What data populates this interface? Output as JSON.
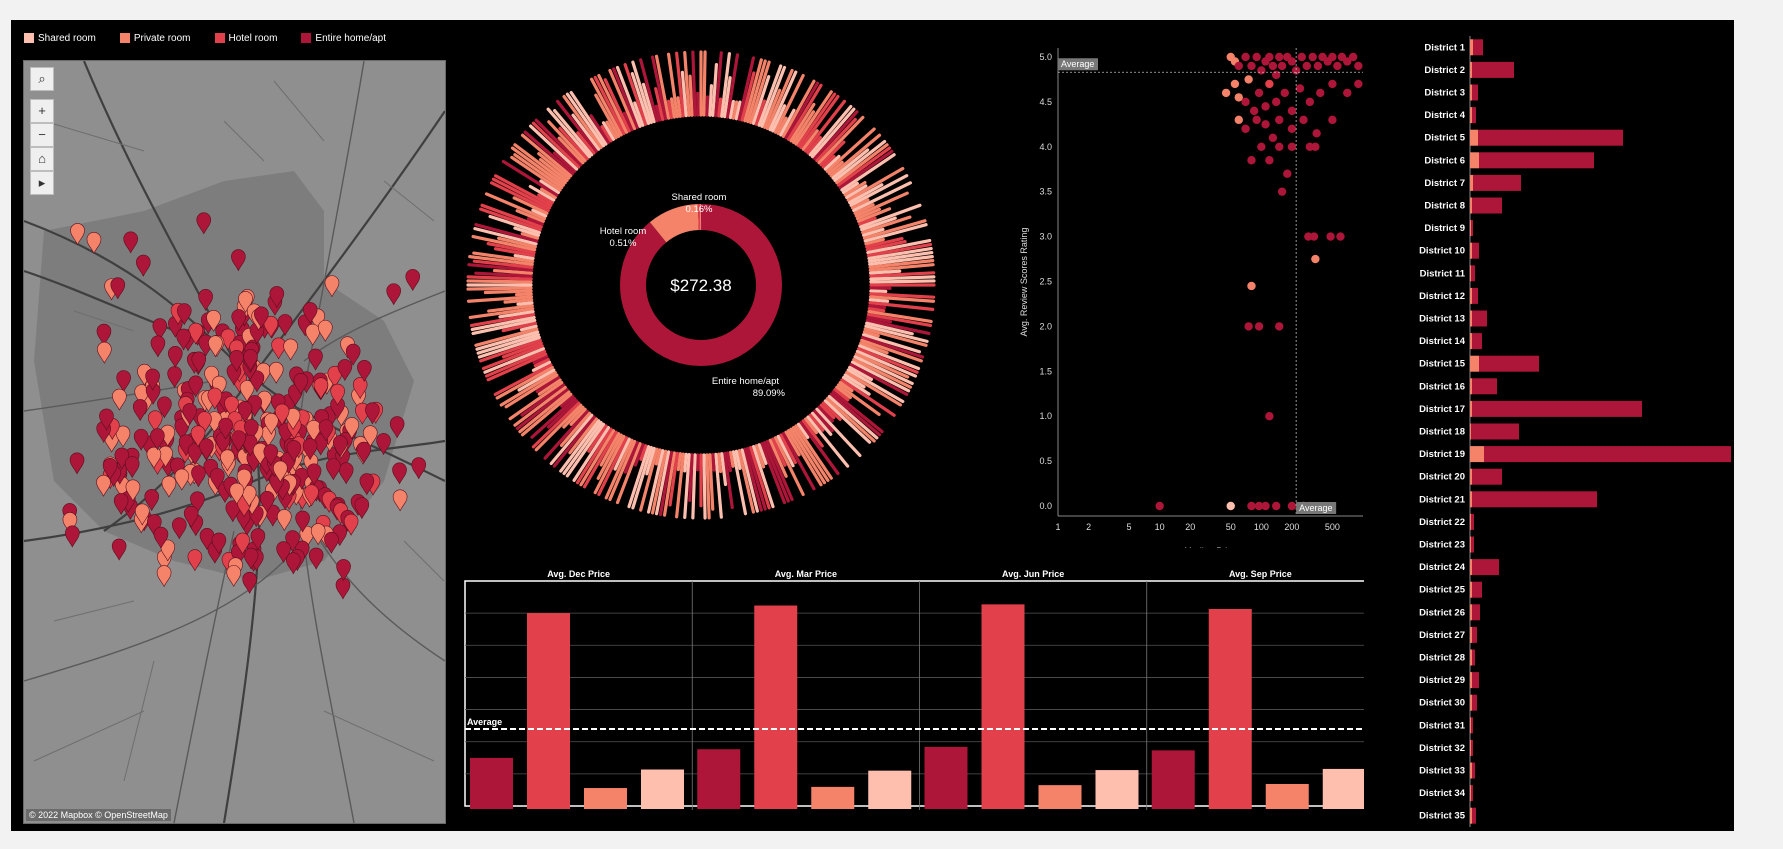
{
  "colors": {
    "shared": "#ffbfaf",
    "private": "#f5836a",
    "hotel": "#e2404a",
    "entire": "#ad1638"
  },
  "legend": [
    {
      "label": "Shared room",
      "color": "#ffbfaf"
    },
    {
      "label": "Private room",
      "color": "#f5836a"
    },
    {
      "label": "Hotel room",
      "color": "#e2404a"
    },
    {
      "label": "Entire home/apt",
      "color": "#ad1638"
    }
  ],
  "map": {
    "credit": "© 2022 Mapbox © OpenStreetMap",
    "controls": [
      "search-icon",
      "zoom-in-icon",
      "zoom-out-icon",
      "home-icon",
      "play-icon"
    ]
  },
  "chart_data": [
    {
      "type": "pie",
      "title": "",
      "center_label": "$272.38",
      "slices": [
        {
          "name": "Entire home/apt",
          "label_value": "89.09%",
          "value": 89.09,
          "color": "#ad1638"
        },
        {
          "name": "Private room",
          "label_value": "",
          "value": 10.24,
          "color": "#f5836a"
        },
        {
          "name": "Hotel room",
          "label_value": "0.51%",
          "value": 0.51,
          "color": "#e2404a"
        },
        {
          "name": "Shared room",
          "label_value": "0.16%",
          "value": 0.16,
          "color": "#ffbfaf"
        }
      ]
    },
    {
      "type": "scatter",
      "xlabel": "Median Price",
      "ylabel": "Avg. Review Scores Rating",
      "xscale": "log",
      "xlim": [
        1,
        1000
      ],
      "ylim": [
        0,
        5.1
      ],
      "xticks": [
        {
          "v": 1,
          "t": "1"
        },
        {
          "v": 2,
          "t": "2"
        },
        {
          "v": 5,
          "t": "5"
        },
        {
          "v": 10,
          "t": "10"
        },
        {
          "v": 20,
          "t": "20"
        },
        {
          "v": 50,
          "t": "50"
        },
        {
          "v": 100,
          "t": "100"
        },
        {
          "v": 200,
          "t": "200"
        },
        {
          "v": 500,
          "t": "500"
        }
      ],
      "yticks": [
        "0.0",
        "0.5",
        "1.0",
        "1.5",
        "2.0",
        "2.5",
        "3.0",
        "3.5",
        "4.0",
        "4.5",
        "5.0"
      ],
      "avg_x": 220,
      "avg_y": 4.83,
      "avg_label": "Average",
      "points": [
        {
          "x": 50,
          "y": 5.0,
          "t": "p"
        },
        {
          "x": 55,
          "y": 4.95,
          "t": "p"
        },
        {
          "x": 60,
          "y": 4.9,
          "t": "e"
        },
        {
          "x": 70,
          "y": 5.0,
          "t": "e"
        },
        {
          "x": 80,
          "y": 4.9,
          "t": "e"
        },
        {
          "x": 90,
          "y": 5.0,
          "t": "e"
        },
        {
          "x": 100,
          "y": 4.85,
          "t": "e"
        },
        {
          "x": 110,
          "y": 4.95,
          "t": "e"
        },
        {
          "x": 120,
          "y": 5.0,
          "t": "e"
        },
        {
          "x": 130,
          "y": 4.9,
          "t": "e"
        },
        {
          "x": 140,
          "y": 4.8,
          "t": "e"
        },
        {
          "x": 150,
          "y": 5.0,
          "t": "e"
        },
        {
          "x": 160,
          "y": 4.9,
          "t": "e"
        },
        {
          "x": 180,
          "y": 5.0,
          "t": "e"
        },
        {
          "x": 200,
          "y": 4.95,
          "t": "e"
        },
        {
          "x": 220,
          "y": 4.85,
          "t": "e"
        },
        {
          "x": 250,
          "y": 5.0,
          "t": "e"
        },
        {
          "x": 280,
          "y": 4.9,
          "t": "e"
        },
        {
          "x": 320,
          "y": 5.0,
          "t": "e"
        },
        {
          "x": 360,
          "y": 4.9,
          "t": "e"
        },
        {
          "x": 400,
          "y": 5.0,
          "t": "e"
        },
        {
          "x": 450,
          "y": 4.95,
          "t": "e"
        },
        {
          "x": 500,
          "y": 5.0,
          "t": "e"
        },
        {
          "x": 560,
          "y": 4.9,
          "t": "e"
        },
        {
          "x": 620,
          "y": 5.0,
          "t": "e"
        },
        {
          "x": 700,
          "y": 4.95,
          "t": "e"
        },
        {
          "x": 800,
          "y": 5.0,
          "t": "e"
        },
        {
          "x": 900,
          "y": 4.9,
          "t": "e"
        },
        {
          "x": 45,
          "y": 4.6,
          "t": "p"
        },
        {
          "x": 55,
          "y": 4.7,
          "t": "p"
        },
        {
          "x": 60,
          "y": 4.55,
          "t": "p"
        },
        {
          "x": 70,
          "y": 4.5,
          "t": "e"
        },
        {
          "x": 75,
          "y": 4.75,
          "t": "p"
        },
        {
          "x": 85,
          "y": 4.4,
          "t": "e"
        },
        {
          "x": 95,
          "y": 4.6,
          "t": "e"
        },
        {
          "x": 110,
          "y": 4.45,
          "t": "e"
        },
        {
          "x": 120,
          "y": 4.7,
          "t": "h"
        },
        {
          "x": 140,
          "y": 4.5,
          "t": "e"
        },
        {
          "x": 170,
          "y": 4.6,
          "t": "e"
        },
        {
          "x": 200,
          "y": 4.4,
          "t": "e"
        },
        {
          "x": 240,
          "y": 4.65,
          "t": "e"
        },
        {
          "x": 300,
          "y": 4.5,
          "t": "e"
        },
        {
          "x": 380,
          "y": 4.6,
          "t": "e"
        },
        {
          "x": 500,
          "y": 4.7,
          "t": "e"
        },
        {
          "x": 700,
          "y": 4.6,
          "t": "e"
        },
        {
          "x": 900,
          "y": 4.7,
          "t": "e"
        },
        {
          "x": 60,
          "y": 4.3,
          "t": "p"
        },
        {
          "x": 70,
          "y": 4.2,
          "t": "e"
        },
        {
          "x": 90,
          "y": 4.3,
          "t": "e"
        },
        {
          "x": 110,
          "y": 4.25,
          "t": "e"
        },
        {
          "x": 130,
          "y": 4.1,
          "t": "e"
        },
        {
          "x": 150,
          "y": 4.3,
          "t": "e"
        },
        {
          "x": 200,
          "y": 4.2,
          "t": "e"
        },
        {
          "x": 260,
          "y": 4.3,
          "t": "e"
        },
        {
          "x": 350,
          "y": 4.15,
          "t": "e"
        },
        {
          "x": 500,
          "y": 4.3,
          "t": "e"
        },
        {
          "x": 80,
          "y": 3.85,
          "t": "e"
        },
        {
          "x": 100,
          "y": 4.0,
          "t": "e"
        },
        {
          "x": 120,
          "y": 3.85,
          "t": "e"
        },
        {
          "x": 150,
          "y": 4.0,
          "t": "e"
        },
        {
          "x": 180,
          "y": 3.7,
          "t": "e"
        },
        {
          "x": 200,
          "y": 4.0,
          "t": "e"
        },
        {
          "x": 300,
          "y": 4.0,
          "t": "e"
        },
        {
          "x": 340,
          "y": 4.0,
          "t": "e"
        },
        {
          "x": 160,
          "y": 3.5,
          "t": "e"
        },
        {
          "x": 290,
          "y": 3.0,
          "t": "e"
        },
        {
          "x": 330,
          "y": 3.0,
          "t": "e"
        },
        {
          "x": 480,
          "y": 3.0,
          "t": "e"
        },
        {
          "x": 600,
          "y": 3.0,
          "t": "e"
        },
        {
          "x": 340,
          "y": 2.75,
          "t": "p"
        },
        {
          "x": 80,
          "y": 2.45,
          "t": "p"
        },
        {
          "x": 75,
          "y": 2.0,
          "t": "e"
        },
        {
          "x": 95,
          "y": 2.0,
          "t": "e"
        },
        {
          "x": 150,
          "y": 2.0,
          "t": "e"
        },
        {
          "x": 120,
          "y": 1.0,
          "t": "e"
        },
        {
          "x": 10,
          "y": 0.0,
          "t": "e"
        },
        {
          "x": 50,
          "y": 0.0,
          "t": "s"
        },
        {
          "x": 80,
          "y": 0.0,
          "t": "e"
        },
        {
          "x": 95,
          "y": 0.0,
          "t": "e"
        },
        {
          "x": 110,
          "y": 0.0,
          "t": "e"
        },
        {
          "x": 140,
          "y": 0.0,
          "t": "e"
        },
        {
          "x": 200,
          "y": 0.0,
          "t": "e"
        },
        {
          "x": 260,
          "y": 0.0,
          "t": "p"
        },
        {
          "x": 300,
          "y": 0.0,
          "t": "e"
        }
      ]
    },
    {
      "type": "bar",
      "panels": [
        "Avg. Dec Price",
        "Avg. Mar Price",
        "Avg. Jun Price",
        "Avg. Sep Price"
      ],
      "categories": [
        "Entire home/apt",
        "Hotel room",
        "Private room",
        "Shared room"
      ],
      "ylim": [
        0,
        340
      ],
      "avg_value": 133,
      "avg_label": "Average",
      "series": [
        {
          "values": [
            83,
            333,
            31,
            63
          ]
        },
        {
          "values": [
            98,
            346,
            33,
            61
          ]
        },
        {
          "values": [
            102,
            348,
            36,
            62
          ]
        },
        {
          "values": [
            96,
            340,
            38,
            64
          ]
        }
      ]
    },
    {
      "type": "bar",
      "orientation": "horizontal",
      "stacked": true,
      "categories": [
        "District 1",
        "District 2",
        "District 3",
        "District 4",
        "District 5",
        "District 6",
        "District 7",
        "District 8",
        "District 9",
        "District 10",
        "District 11",
        "District 12",
        "District 13",
        "District 14",
        "District 15",
        "District 16",
        "District 17",
        "District 18",
        "District 19",
        "District 20",
        "District 21",
        "District 22",
        "District 23",
        "District 24",
        "District 25",
        "District 26",
        "District 27",
        "District 28",
        "District 29",
        "District 30",
        "District 31",
        "District 32",
        "District 33",
        "District 34",
        "District 35"
      ],
      "series": [
        {
          "values": [
            3,
            2,
            2,
            2,
            8,
            9,
            3,
            2,
            1,
            2,
            1,
            2,
            2,
            2,
            9,
            2,
            2,
            1,
            14,
            2,
            2,
            1,
            1,
            2,
            2,
            2,
            2,
            2,
            2,
            2,
            1,
            1,
            2,
            1,
            2
          ]
        },
        {
          "values": [
            10,
            42,
            6,
            4,
            145,
            115,
            48,
            30,
            2,
            7,
            4,
            6,
            15,
            10,
            60,
            25,
            170,
            48,
            265,
            30,
            125,
            3,
            3,
            27,
            10,
            8,
            5,
            3,
            7,
            5,
            2,
            2,
            3,
            2,
            4
          ]
        }
      ]
    }
  ]
}
